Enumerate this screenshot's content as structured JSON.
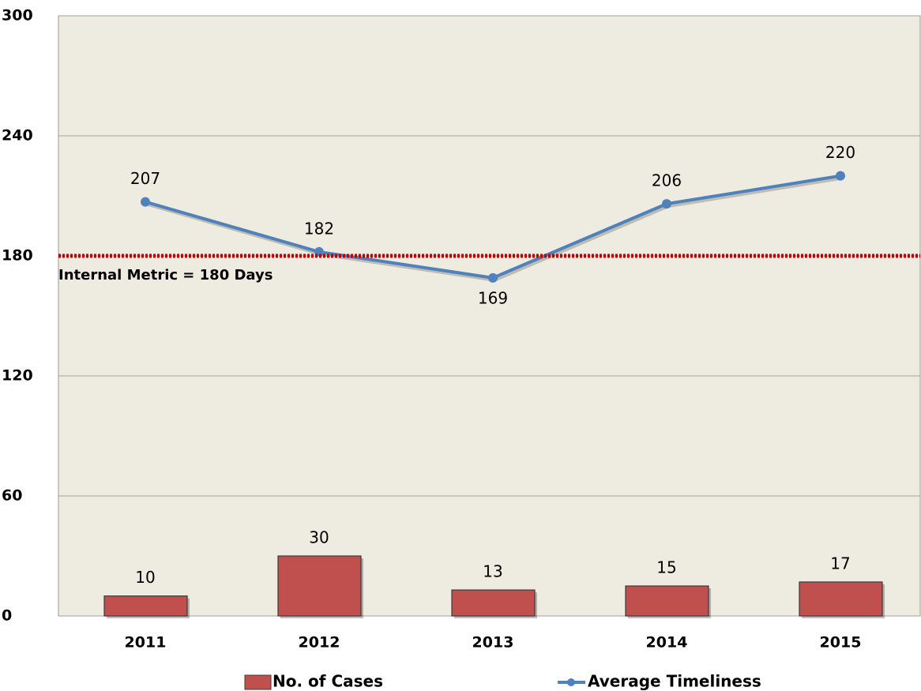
{
  "chart_data": {
    "type": "bar_line",
    "categories": [
      "2011",
      "2012",
      "2013",
      "2014",
      "2015"
    ],
    "series": [
      {
        "name": "No. of Cases",
        "type": "bar",
        "color": "#c0504d",
        "values": [
          10,
          30,
          13,
          15,
          17
        ]
      },
      {
        "name": "Average Timeliness",
        "type": "line",
        "color": "#4f81bd",
        "values": [
          207,
          182,
          169,
          206,
          220
        ]
      }
    ],
    "ylim": [
      0,
      300
    ],
    "yticks": [
      0,
      60,
      120,
      180,
      240,
      300
    ],
    "grid": true,
    "reference_line": {
      "value": 180,
      "label": "Internal Metric = 180 Days",
      "color": "#c00000"
    },
    "legend": "bottom"
  }
}
